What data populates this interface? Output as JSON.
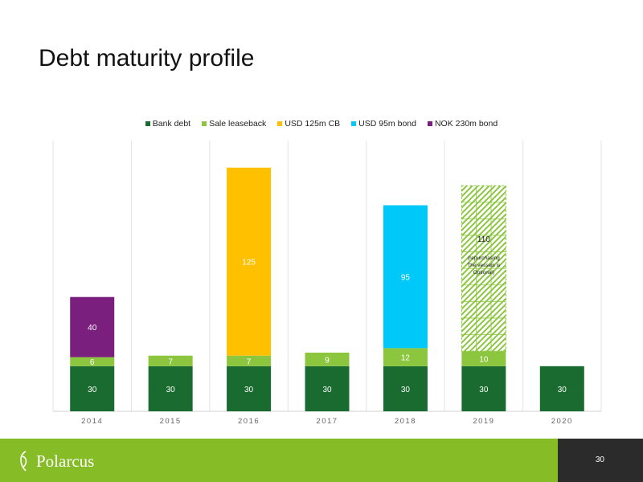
{
  "title": "Debt maturity profile",
  "brand": "Polarcus",
  "page_number": "30",
  "colors": {
    "bank_debt": "#1a6b2f",
    "sale_leaseback": "#8cc63f",
    "usd_cb": "#ffc000",
    "usd_bond": "#00c8f8",
    "nok_bond": "#7b1f7f",
    "footer_green": "#86bc25",
    "footer_dark": "#2b2b2b"
  },
  "chart_data": {
    "type": "bar",
    "stacked": true,
    "categories": [
      "2014",
      "2015",
      "2016",
      "2017",
      "2018",
      "2019",
      "2020"
    ],
    "series": [
      {
        "name": "Bank debt",
        "color": "#1a6b2f",
        "values": [
          30,
          30,
          30,
          30,
          30,
          30,
          30
        ]
      },
      {
        "name": "Sale leaseback",
        "color": "#8cc63f",
        "values": [
          6,
          7,
          7,
          9,
          12,
          10,
          0
        ]
      },
      {
        "name": "USD 125m CB",
        "color": "#ffc000",
        "values": [
          0,
          0,
          125,
          0,
          0,
          0,
          0
        ]
      },
      {
        "name": "USD 95m bond",
        "color": "#00c8f8",
        "values": [
          0,
          0,
          0,
          0,
          95,
          0,
          0
        ]
      },
      {
        "name": "NOK 230m bond",
        "color": "#7b1f7f",
        "values": [
          40,
          0,
          0,
          0,
          0,
          0,
          0
        ]
      }
    ],
    "extra_bar": {
      "category": "2019",
      "value": 110,
      "label": "110",
      "note_lines": [
        "(repurchasing",
        "The vessels is",
        "Optional)"
      ],
      "style": "hatched"
    },
    "legend_position": "top",
    "ylim": [
      0,
      180
    ],
    "grid": "vertical category separators"
  }
}
